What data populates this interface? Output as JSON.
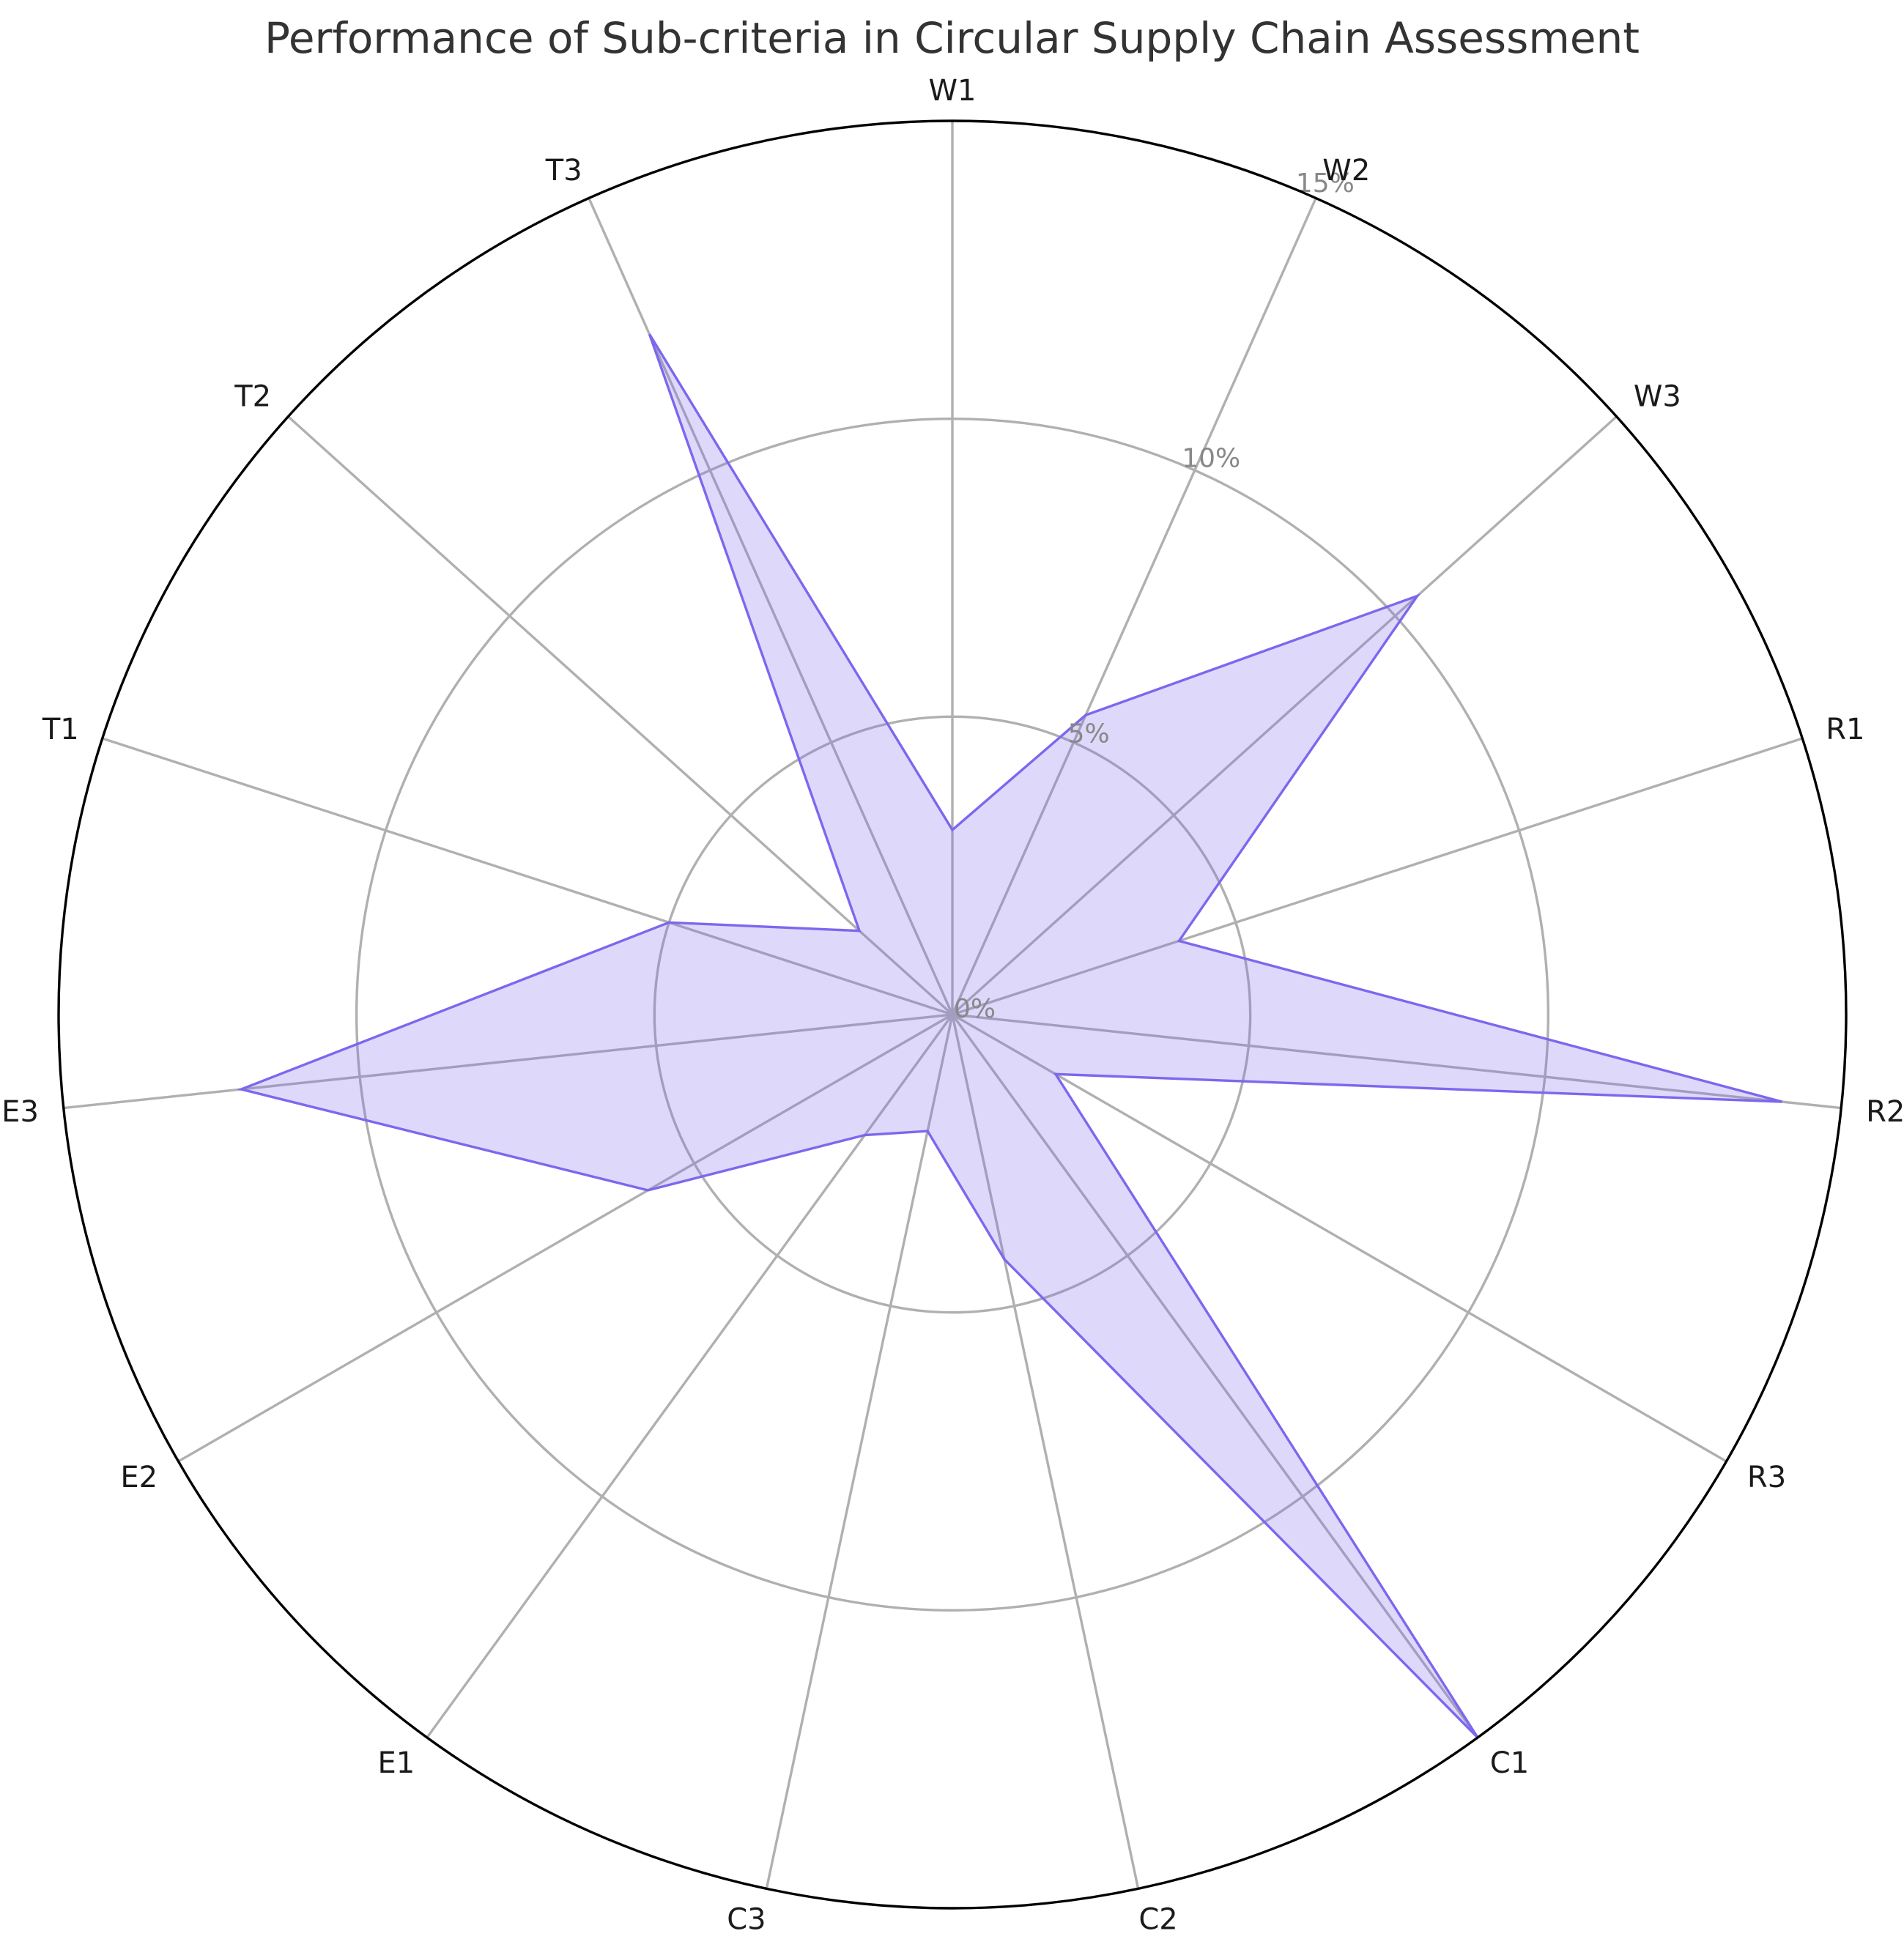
{
  "chart_data": {
    "type": "radar",
    "title": "Performance of Sub-criteria in Circular Supply Chain Assessment",
    "categories": [
      "W1",
      "W2",
      "W3",
      "R1",
      "R2",
      "R3",
      "C1",
      "C2",
      "C3",
      "E1",
      "E2",
      "E3",
      "T1",
      "T2",
      "T3"
    ],
    "series": [
      {
        "values": [
          3.1,
          5.5,
          10.5,
          4.0,
          14.0,
          2.0,
          15.0,
          4.2,
          2.0,
          2.5,
          5.9,
          12.0,
          5.0,
          2.1,
          12.5
        ],
        "fill_color": "#7b68ee",
        "fill_opacity": 0.25,
        "line_color": "#7b68ee"
      }
    ],
    "rlim": [
      0,
      15
    ],
    "radial_ticks": [
      0,
      5,
      10,
      15
    ],
    "radial_tick_labels": [
      "0%",
      "5%",
      "10%",
      "15%"
    ],
    "grid": true
  }
}
